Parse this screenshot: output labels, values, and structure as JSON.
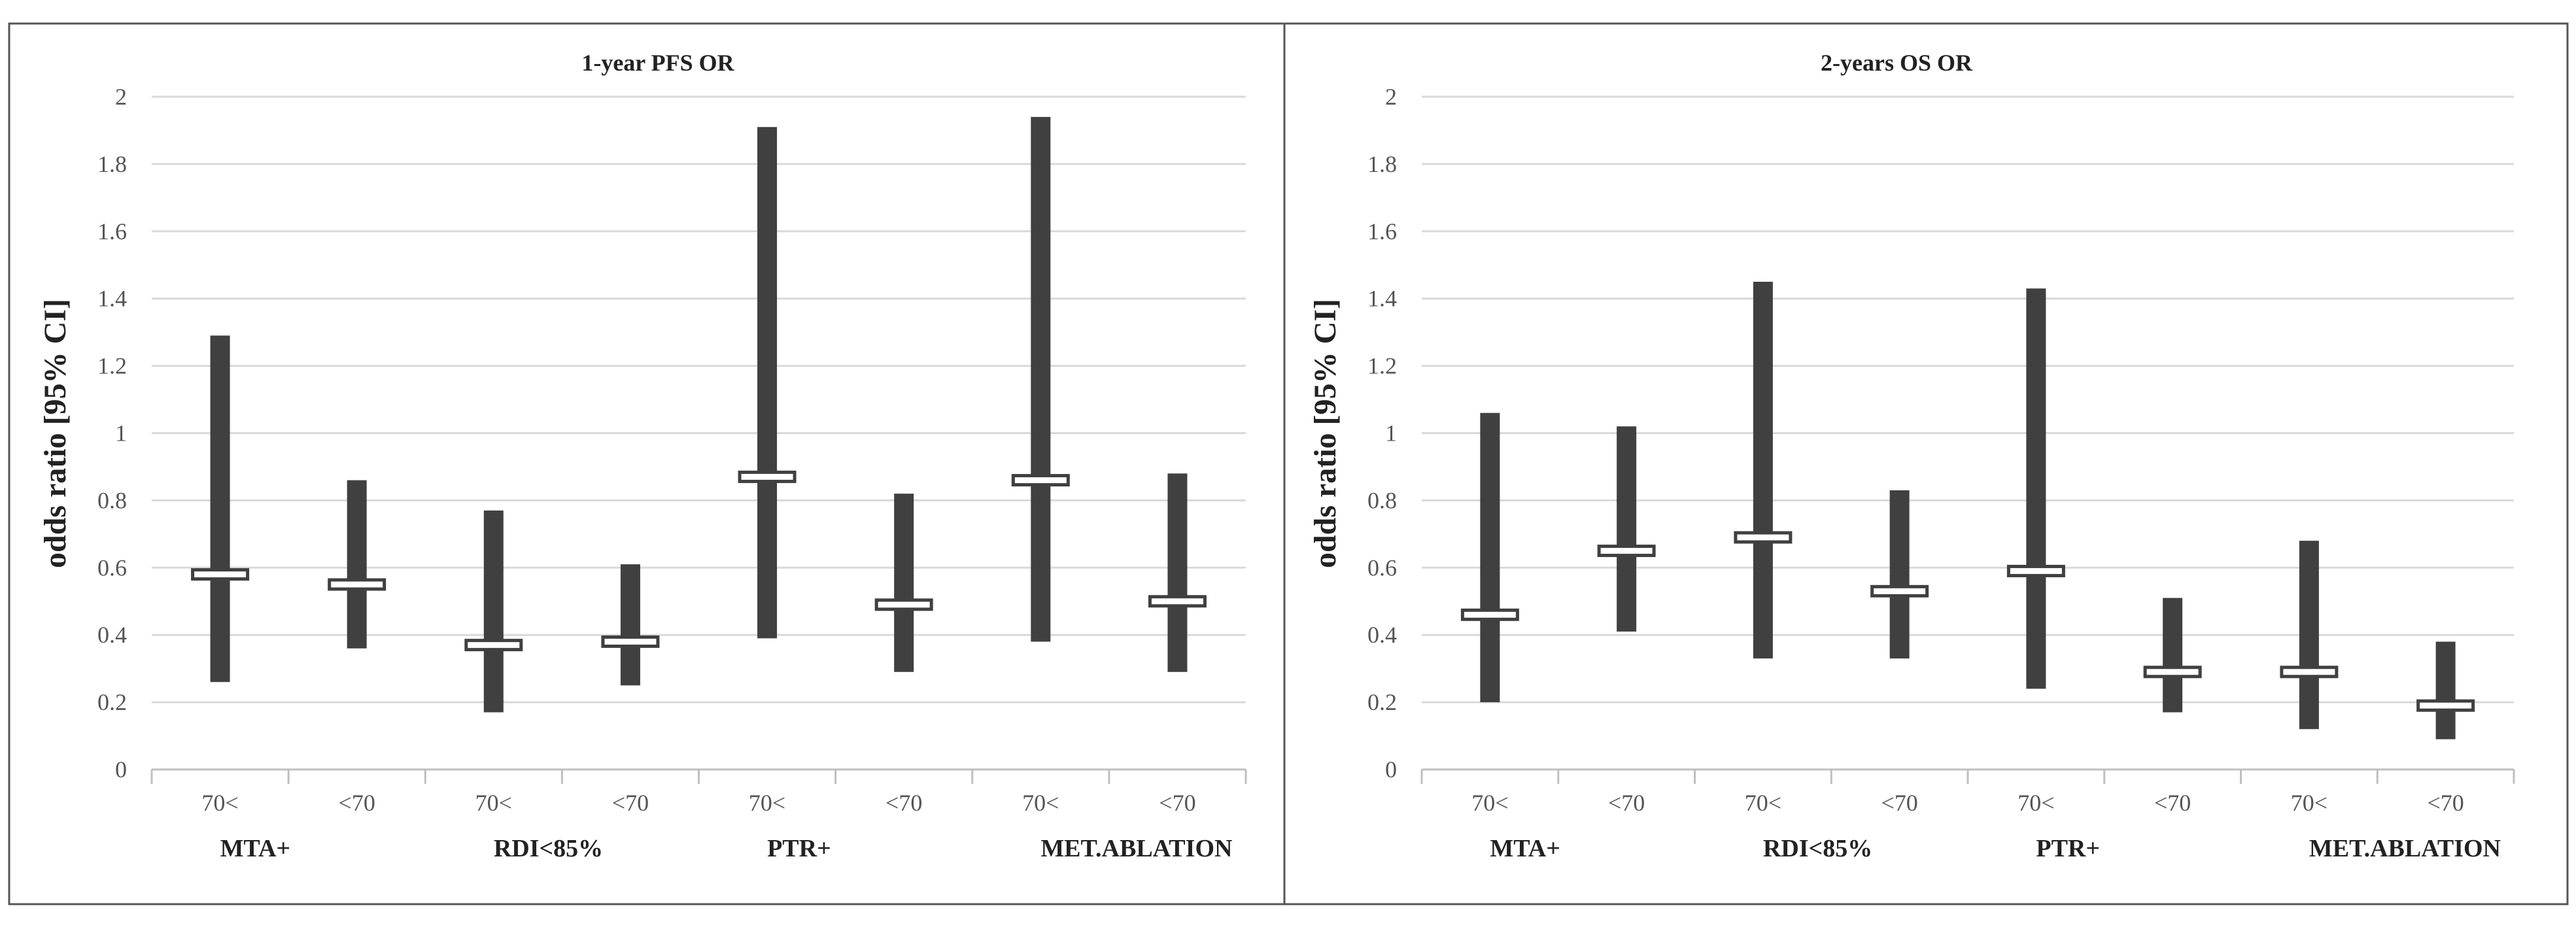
{
  "chart_data": [
    {
      "type": "error-bar",
      "title": "1-year PFS OR",
      "ylabel": "odds ratio [95% CI]",
      "xlabel": "",
      "ylim": [
        0,
        2
      ],
      "yticks": [
        0,
        0.2,
        0.4,
        0.6,
        0.8,
        1,
        1.2,
        1.4,
        1.6,
        1.8,
        2
      ],
      "ytick_labels": [
        "0",
        "0.2",
        "0.4",
        "0.6",
        "0.8",
        "1",
        "1.2",
        "1.4",
        "1.6",
        "1.8",
        "2"
      ],
      "grid": true,
      "categories": [
        "70<",
        "<70",
        "70<",
        "<70",
        "70<",
        "<70",
        "70<",
        "<70"
      ],
      "groups": [
        "MTA+",
        "RDI<85%",
        "PTR+",
        "MET.ABLATION"
      ],
      "point": [
        0.58,
        0.55,
        0.37,
        0.38,
        0.87,
        0.49,
        0.86,
        0.5
      ],
      "lower": [
        0.26,
        0.36,
        0.17,
        0.25,
        0.39,
        0.29,
        0.38,
        0.29
      ],
      "upper": [
        1.29,
        0.86,
        0.77,
        0.61,
        1.91,
        0.82,
        1.94,
        0.88
      ]
    },
    {
      "type": "error-bar",
      "title": "2-years OS OR",
      "ylabel": "odds ratio [95% CI]",
      "xlabel": "",
      "ylim": [
        0,
        2
      ],
      "yticks": [
        0,
        0.2,
        0.4,
        0.6,
        0.8,
        1,
        1.2,
        1.4,
        1.6,
        1.8,
        2
      ],
      "ytick_labels": [
        "0",
        "0.2",
        "0.4",
        "0.6",
        "0.8",
        "1",
        "1.2",
        "1.4",
        "1.6",
        "1.8",
        "2"
      ],
      "grid": true,
      "categories": [
        "70<",
        "<70",
        "70<",
        "<70",
        "70<",
        "<70",
        "70<",
        "<70"
      ],
      "groups": [
        "MTA+",
        "RDI<85%",
        "PTR+",
        "MET.ABLATION"
      ],
      "point": [
        0.46,
        0.65,
        0.69,
        0.53,
        0.59,
        0.29,
        0.29,
        0.19
      ],
      "lower": [
        0.2,
        0.41,
        0.33,
        0.33,
        0.24,
        0.17,
        0.12,
        0.09
      ],
      "upper": [
        1.06,
        1.02,
        1.45,
        0.83,
        1.43,
        0.51,
        0.68,
        0.38
      ]
    }
  ],
  "colors": {
    "bar": "#404040",
    "grid": "#d9d9d9",
    "axis": "#bfbfbf",
    "border": "#555555",
    "marker_fill": "#ffffff"
  }
}
